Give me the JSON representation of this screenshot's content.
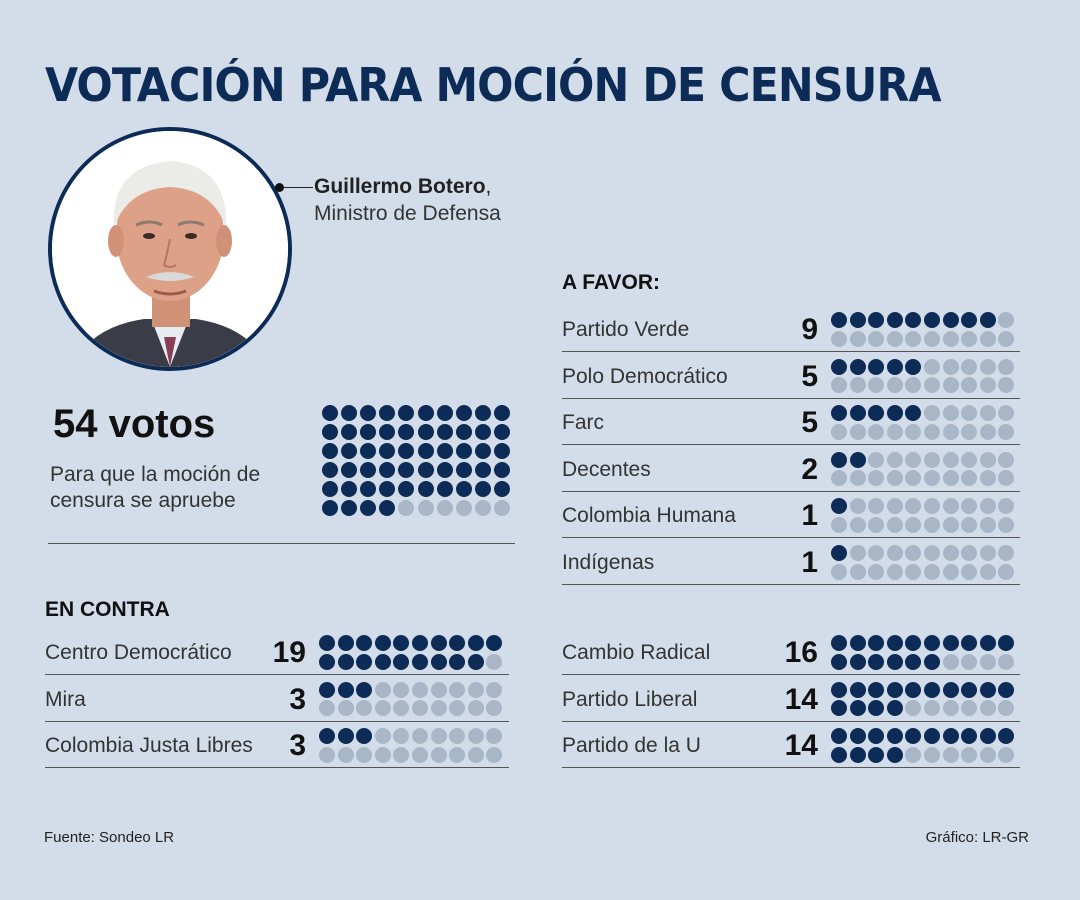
{
  "title": "VOTACIÓN PARA MOCIÓN DE CENSURA",
  "person": {
    "name": "Guillermo Botero",
    "name_suffix": ",",
    "role": "Ministro de Defensa"
  },
  "threshold": {
    "votes_label": "54 votos",
    "description": "Para que la moción de censura se apruebe"
  },
  "sections": {
    "favor_label": "A FAVOR:",
    "contra_label": "EN CONTRA"
  },
  "footer": {
    "source": "Fuente: Sondeo LR",
    "credit": "Gráfico: LR-GR"
  },
  "colors": {
    "background": "#d3dde9",
    "filled_dot": "#0d2b57",
    "empty_dot": "#a9b6c8",
    "title": "#0d2b57"
  },
  "chart_data": [
    {
      "type": "bar",
      "title": "A FAVOR:",
      "categories": [
        "Partido Verde",
        "Polo Democrático",
        "Farc",
        "Decentes",
        "Colombia Humana",
        "Indígenas"
      ],
      "values": [
        9,
        5,
        5,
        2,
        1,
        1
      ],
      "dots_per_row": 20
    },
    {
      "type": "bar",
      "title": "EN CONTRA",
      "categories": [
        "Centro Democrático",
        "Mira",
        "Colombia Justa Libres"
      ],
      "values": [
        19,
        3,
        3
      ],
      "dots_per_row": 20
    },
    {
      "type": "bar",
      "title": "",
      "categories": [
        "Cambio Radical",
        "Partido Liberal",
        "Partido de la U"
      ],
      "values": [
        16,
        14,
        14
      ],
      "dots_per_row": 20
    },
    {
      "type": "bar",
      "title": "54 votos",
      "categories": [
        "54 votos"
      ],
      "values": [
        54
      ],
      "dots_total": 60
    }
  ]
}
